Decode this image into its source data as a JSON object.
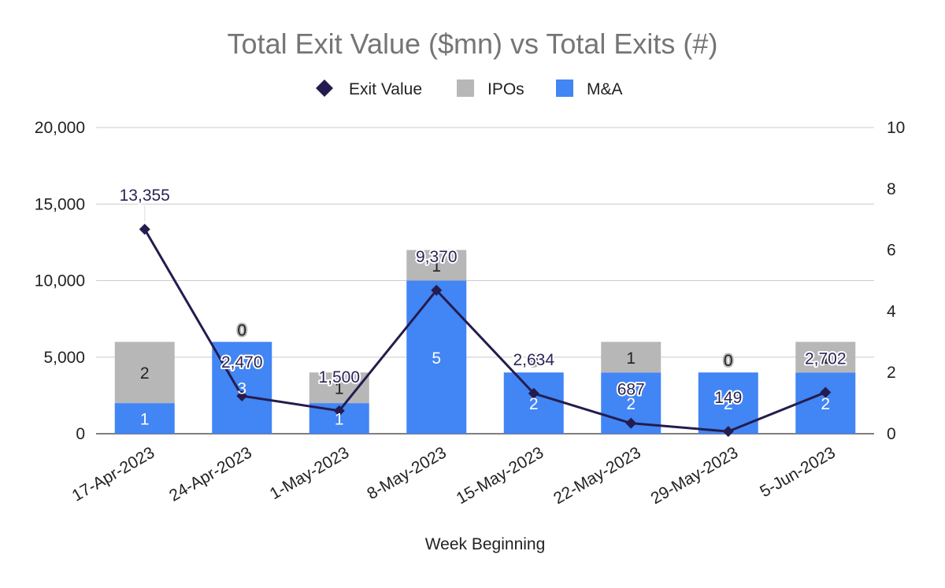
{
  "chart_data": {
    "type": "bar",
    "stacked": true,
    "title": "Total Exit Value ($mn) vs Total Exits (#)",
    "xlabel": "Week Beginning",
    "ylabel_left": "",
    "ylabel_right": "",
    "categories": [
      "17-Apr-2023",
      "24-Apr-2023",
      "1-May-2023",
      "8-May-2023",
      "15-May-2023",
      "22-May-2023",
      "29-May-2023",
      "5-Jun-2023"
    ],
    "left_axis": {
      "min": 0,
      "max": 20000,
      "ticks": [
        "0",
        "5,000",
        "10,000",
        "15,000",
        "20,000"
      ],
      "tick_values": [
        0,
        5000,
        10000,
        15000,
        20000
      ]
    },
    "right_axis": {
      "min": 0,
      "max": 10,
      "ticks": [
        "0",
        "2",
        "4",
        "6",
        "8",
        "10"
      ],
      "tick_values": [
        0,
        2,
        4,
        6,
        8,
        10
      ]
    },
    "series": [
      {
        "name": "Exit Value",
        "kind": "line",
        "axis": "left",
        "color": "#241c4e",
        "marker": "diamond",
        "values": [
          13355,
          2470,
          1500,
          9370,
          2634,
          687,
          149,
          2702
        ],
        "labels": [
          "13,355",
          "2,470",
          "1,500",
          "9,370",
          "2,634",
          "687",
          "149",
          "2,702"
        ]
      },
      {
        "name": "IPOs",
        "kind": "bar",
        "axis": "right",
        "color": "#b7b7b7",
        "values": [
          2,
          0,
          1,
          1,
          0,
          1,
          0,
          1
        ],
        "labels": [
          "2",
          "0",
          "1",
          "1",
          "0",
          "1",
          "0",
          "1"
        ]
      },
      {
        "name": "M&A",
        "kind": "bar",
        "axis": "right",
        "color": "#4285f4",
        "values": [
          1,
          3,
          1,
          5,
          2,
          2,
          2,
          2
        ],
        "labels": [
          "1",
          "3",
          "1",
          "5",
          "2",
          "2",
          "2",
          "2"
        ]
      }
    ],
    "legend": {
      "position": "top",
      "entries": [
        "Exit Value",
        "IPOs",
        "M&A"
      ]
    },
    "grid": true
  }
}
